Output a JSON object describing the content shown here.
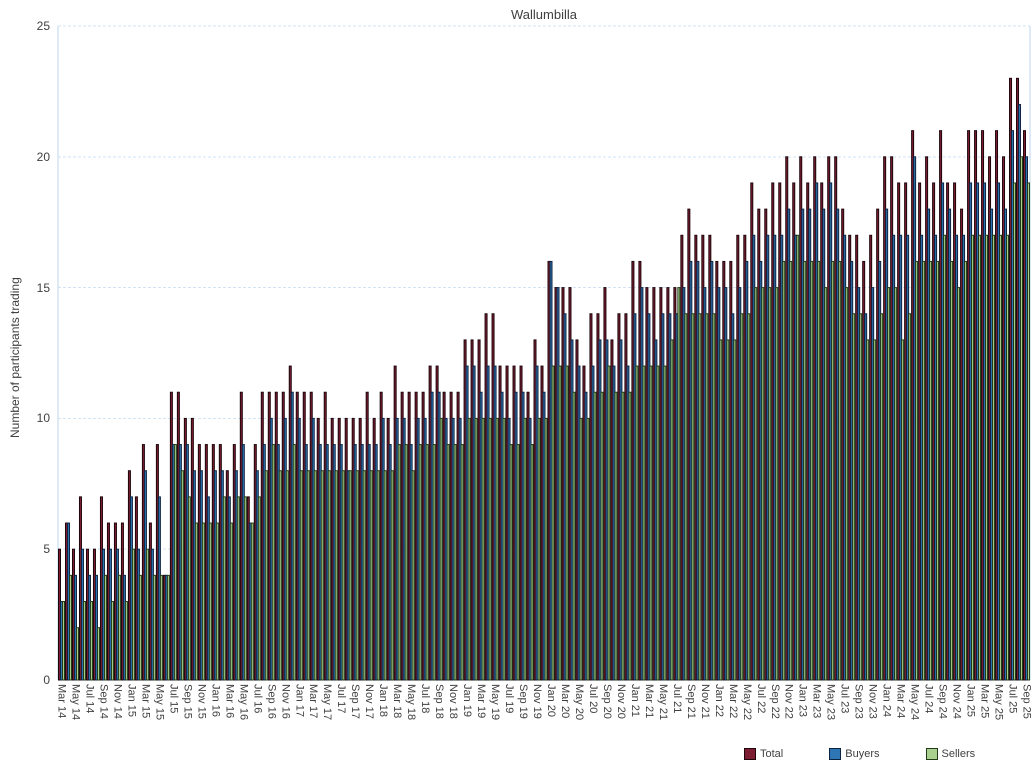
{
  "title": "Wallumbilla",
  "y_axis": {
    "label": "Number of participants trading",
    "ticks": [
      0,
      5,
      10,
      15,
      20,
      25
    ]
  },
  "colors": {
    "total_fill": "#7E1D31",
    "total_border": "#1D060C",
    "buyers_fill": "#2E75B6",
    "buyers_border": "#0D2440",
    "sellers_fill": "#A9D08E",
    "sellers_border": "#223A16",
    "gridline": "#D2E3F3",
    "plot_border": "#BDD7EE",
    "text": "#404040"
  },
  "chart_data": {
    "type": "bar",
    "title": "Wallumbilla",
    "xlabel": "",
    "ylabel": "Number of participants trading",
    "ylim": [
      0,
      25
    ],
    "y_ticks": [
      0,
      5,
      10,
      15,
      20,
      25
    ],
    "grid": true,
    "legend_position": "bottom",
    "x_tick_label_every": 2,
    "categories": [
      "Mar 14",
      "Apr 14",
      "May 14",
      "Jun 14",
      "Jul 14",
      "Aug 14",
      "Sep 14",
      "Oct 14",
      "Nov 14",
      "Dec 14",
      "Jan 15",
      "Feb 15",
      "Mar 15",
      "Apr 15",
      "May 15",
      "Jun 15",
      "Jul 15",
      "Aug 15",
      "Sep 15",
      "Oct 15",
      "Nov 15",
      "Dec 15",
      "Jan 16",
      "Feb 16",
      "Mar 16",
      "Apr 16",
      "May 16",
      "Jun 16",
      "Jul 16",
      "Aug 16",
      "Sep 16",
      "Oct 16",
      "Nov 16",
      "Dec 16",
      "Jan 17",
      "Feb 17",
      "Mar 17",
      "Apr 17",
      "May 17",
      "Jun 17",
      "Jul 17",
      "Aug 17",
      "Sep 17",
      "Oct 17",
      "Nov 17",
      "Dec 17",
      "Jan 18",
      "Feb 18",
      "Mar 18",
      "Apr 18",
      "May 18",
      "Jun 18",
      "Jul 18",
      "Aug 18",
      "Sep 18",
      "Oct 18",
      "Nov 18",
      "Dec 18",
      "Jan 19",
      "Feb 19",
      "Mar 19",
      "Apr 19",
      "May 19",
      "Jun 19",
      "Jul 19",
      "Aug 19",
      "Sep 19",
      "Oct 19",
      "Nov 19",
      "Dec 19",
      "Jan 20",
      "Feb 20",
      "Mar 20",
      "Apr 20",
      "May 20",
      "Jun 20",
      "Jul 20",
      "Aug 20",
      "Sep 20",
      "Oct 20",
      "Nov 20",
      "Dec 20",
      "Jan 21",
      "Feb 21",
      "Mar 21",
      "Apr 21",
      "May 21",
      "Jun 21",
      "Jul 21",
      "Aug 21",
      "Sep 21",
      "Oct 21",
      "Nov 21",
      "Dec 21",
      "Jan 22",
      "Feb 22",
      "Mar 22",
      "Apr 22",
      "May 22",
      "Jun 22",
      "Jul 22",
      "Aug 22",
      "Sep 22",
      "Oct 22",
      "Nov 22",
      "Dec 22",
      "Jan 23",
      "Feb 23",
      "Mar 23",
      "Apr 23",
      "May 23",
      "Jun 23",
      "Jul 23",
      "Aug 23",
      "Sep 23",
      "Oct 23",
      "Nov 23",
      "Dec 23",
      "Jan 24",
      "Feb 24",
      "Mar 24",
      "Apr 24",
      "May 24",
      "Jun 24",
      "Jul 24",
      "Aug 24",
      "Sep 24",
      "Oct 24",
      "Nov 24",
      "Dec 24",
      "Jan 25",
      "Feb 25",
      "Mar 25",
      "Apr 25",
      "May 25",
      "Jun 25",
      "Jul 25",
      "Aug 25",
      "Sep 25"
    ],
    "series": [
      {
        "name": "Total",
        "fill": "#7E1D31",
        "border": "#1D060C",
        "values": [
          5,
          6,
          5,
          7,
          5,
          5,
          7,
          6,
          6,
          6,
          8,
          7,
          9,
          6,
          9,
          4,
          11,
          11,
          10,
          10,
          9,
          9,
          9,
          9,
          8,
          9,
          11,
          7,
          9,
          11,
          11,
          11,
          11,
          12,
          11,
          11,
          11,
          10,
          11,
          10,
          10,
          10,
          10,
          10,
          11,
          10,
          11,
          10,
          12,
          11,
          11,
          11,
          11,
          12,
          12,
          11,
          11,
          11,
          13,
          13,
          13,
          14,
          14,
          12,
          12,
          12,
          12,
          11,
          13,
          12,
          16,
          15,
          15,
          15,
          13,
          12,
          14,
          14,
          15,
          13,
          14,
          14,
          16,
          16,
          15,
          15,
          15,
          15,
          15,
          17,
          18,
          17,
          17,
          17,
          16,
          16,
          16,
          17,
          17,
          19,
          18,
          18,
          19,
          19,
          20,
          19,
          20,
          19,
          20,
          19,
          20,
          20,
          18,
          17,
          17,
          16,
          17,
          18,
          20,
          20,
          19,
          19,
          21,
          19,
          20,
          19,
          21,
          19,
          19,
          18,
          21,
          21,
          21,
          20,
          21,
          20,
          23,
          23,
          21
        ]
      },
      {
        "name": "Buyers",
        "fill": "#2E75B6",
        "border": "#0D2440",
        "values": [
          3,
          6,
          4,
          5,
          4,
          4,
          5,
          5,
          5,
          4,
          7,
          5,
          8,
          5,
          7,
          4,
          9,
          9,
          9,
          8,
          8,
          7,
          8,
          8,
          7,
          8,
          9,
          6,
          8,
          9,
          10,
          9,
          10,
          11,
          10,
          9,
          10,
          9,
          9,
          9,
          9,
          8,
          9,
          9,
          9,
          9,
          10,
          9,
          10,
          10,
          9,
          10,
          10,
          11,
          11,
          10,
          10,
          10,
          12,
          12,
          11,
          12,
          12,
          11,
          10,
          11,
          11,
          10,
          12,
          11,
          16,
          15,
          14,
          13,
          12,
          11,
          12,
          13,
          13,
          12,
          13,
          12,
          14,
          15,
          14,
          13,
          14,
          14,
          14,
          15,
          16,
          16,
          15,
          16,
          15,
          15,
          14,
          15,
          16,
          17,
          16,
          17,
          17,
          17,
          18,
          17,
          18,
          18,
          19,
          18,
          19,
          18,
          17,
          16,
          15,
          14,
          15,
          16,
          18,
          17,
          17,
          17,
          20,
          17,
          18,
          17,
          19,
          18,
          17,
          17,
          19,
          19,
          19,
          18,
          19,
          18,
          21,
          22,
          20
        ]
      },
      {
        "name": "Sellers",
        "fill": "#A9D08E",
        "border": "#223A16",
        "values": [
          3,
          4,
          2,
          3,
          3,
          2,
          4,
          3,
          4,
          3,
          5,
          4,
          5,
          4,
          4,
          4,
          9,
          8,
          7,
          6,
          6,
          6,
          6,
          7,
          6,
          7,
          7,
          6,
          7,
          8,
          9,
          8,
          8,
          9,
          8,
          8,
          8,
          8,
          8,
          8,
          8,
          8,
          8,
          8,
          8,
          8,
          8,
          8,
          9,
          9,
          8,
          9,
          9,
          9,
          10,
          9,
          9,
          9,
          10,
          10,
          10,
          10,
          10,
          10,
          9,
          9,
          10,
          9,
          10,
          10,
          12,
          12,
          12,
          11,
          10,
          10,
          11,
          11,
          12,
          11,
          11,
          11,
          12,
          12,
          12,
          12,
          12,
          13,
          15,
          14,
          14,
          14,
          14,
          14,
          13,
          13,
          13,
          14,
          14,
          15,
          15,
          15,
          15,
          16,
          16,
          17,
          16,
          16,
          16,
          15,
          16,
          16,
          15,
          14,
          14,
          13,
          13,
          14,
          15,
          15,
          13,
          14,
          16,
          16,
          16,
          16,
          17,
          16,
          15,
          16,
          17,
          17,
          17,
          17,
          17,
          17,
          19,
          20,
          19
        ]
      }
    ]
  },
  "legend": {
    "items": [
      {
        "label": "Total"
      },
      {
        "label": "Buyers"
      },
      {
        "label": "Sellers"
      }
    ]
  }
}
